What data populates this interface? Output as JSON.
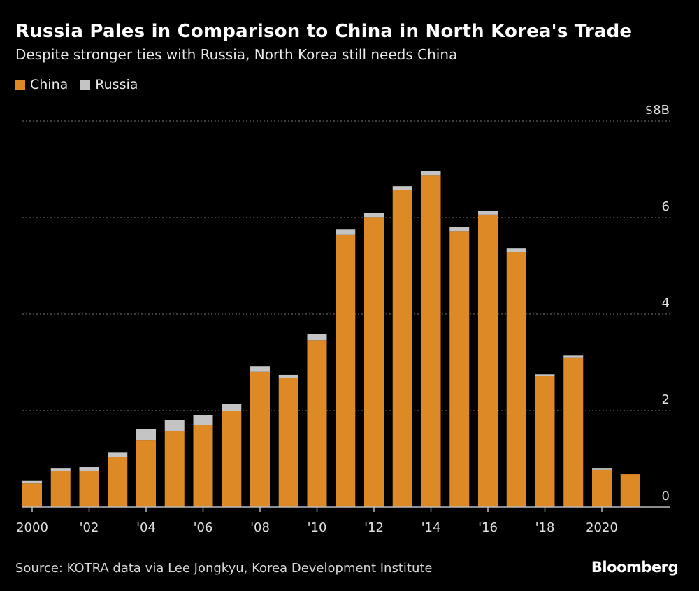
{
  "chart_data": {
    "type": "bar",
    "stacked": true,
    "title": "Russia Pales in Comparison to China in North Korea's Trade",
    "subtitle": "Despite stronger ties with Russia, North Korea still needs China",
    "categories": [
      "2000",
      "2001",
      "2002",
      "2003",
      "2004",
      "2005",
      "2006",
      "2007",
      "2008",
      "2009",
      "2010",
      "2011",
      "2012",
      "2013",
      "2014",
      "2015",
      "2016",
      "2017",
      "2018",
      "2019",
      "2020",
      "2021"
    ],
    "x_tick_labels": [
      "2000",
      "'02",
      "'04",
      "'06",
      "'08",
      "'10",
      "'12",
      "'14",
      "'16",
      "'18",
      "2020"
    ],
    "x_tick_every": 2,
    "series": [
      {
        "name": "China",
        "color": "#dd8a26",
        "values": [
          0.49,
          0.74,
          0.74,
          1.03,
          1.39,
          1.58,
          1.71,
          1.99,
          2.8,
          2.68,
          3.46,
          5.64,
          6.01,
          6.57,
          6.88,
          5.72,
          6.06,
          5.28,
          2.72,
          3.09,
          0.77,
          0.68
        ]
      },
      {
        "name": "Russia",
        "color": "#c4c4c4",
        "values": [
          0.05,
          0.07,
          0.09,
          0.11,
          0.22,
          0.23,
          0.2,
          0.15,
          0.11,
          0.06,
          0.12,
          0.11,
          0.09,
          0.08,
          0.09,
          0.09,
          0.08,
          0.08,
          0.03,
          0.05,
          0.04,
          0.0
        ]
      }
    ],
    "y_tick_labels": [
      "0",
      "2",
      "4",
      "6",
      "$8B"
    ],
    "y_ticks": [
      0,
      2,
      4,
      6,
      8
    ],
    "ylim": [
      0,
      8
    ],
    "y_axis_position": "right",
    "grid": true,
    "legend_position": "top-left"
  },
  "source": "Source: KOTRA data via Lee Jongkyu, Korea Development Institute",
  "logo": "Bloomberg"
}
